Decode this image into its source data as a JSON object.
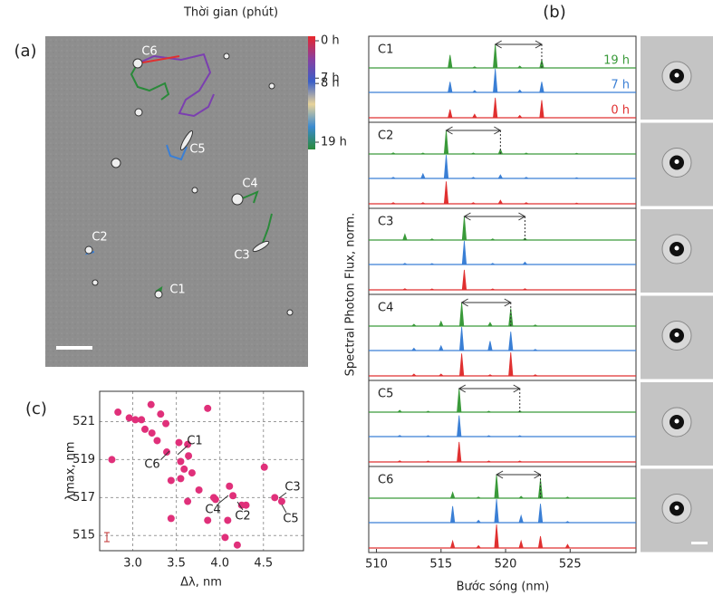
{
  "panel_labels": [
    "(a)",
    "(b)",
    "(c)"
  ],
  "micrograph": {
    "labels": [
      "C6",
      "C5",
      "C4",
      "C2",
      "C3",
      "C1"
    ]
  },
  "chart_data": [
    {
      "type": "colorbar",
      "title": "Thời gian (phút)",
      "lim": [
        0,
        19
      ],
      "ticks": [
        {
          "value": 0,
          "label": "0 h"
        },
        {
          "value": 7,
          "label": "7 h"
        },
        {
          "value": 8,
          "label": "8 h"
        },
        {
          "value": 19,
          "label": "19 h"
        }
      ],
      "colors": [
        "#e8262b",
        "#8a3fa0",
        "#3a5fc8",
        "#e8d39a",
        "#3b8ad0",
        "#2a8a3a"
      ]
    },
    {
      "type": "spectra",
      "title": "C1",
      "xlim": [
        509.4,
        530.1
      ],
      "ylim": [
        0,
        1
      ],
      "arrow": [
        519.2,
        522.8
      ],
      "x": [
        515.7,
        517.6,
        519.2,
        521.1,
        522.8
      ],
      "series": [
        {
          "name": "19 h",
          "color": "#3a9a3a",
          "values": [
            0.55,
            0.05,
            1,
            0.08,
            0.35
          ]
        },
        {
          "name": "7 h",
          "color": "#3a7fd5",
          "values": [
            0.45,
            0.08,
            1,
            0.1,
            0.45
          ]
        },
        {
          "name": "0 h",
          "color": "#e03030",
          "values": [
            0.35,
            0.15,
            0.85,
            0.1,
            0.75
          ]
        }
      ]
    },
    {
      "type": "spectra",
      "title": "C2",
      "xlim": [
        509.4,
        530.1
      ],
      "ylim": [
        0,
        1
      ],
      "arrow": [
        515.4,
        519.6
      ],
      "x": [
        511.3,
        513.6,
        515.4,
        517.5,
        519.6,
        521.6,
        525.5
      ],
      "series": [
        {
          "color": "#3a9a3a",
          "values": [
            0.05,
            0.04,
            1,
            0.04,
            0.2,
            0.04,
            0.03
          ]
        },
        {
          "color": "#3a7fd5",
          "values": [
            0.05,
            0.2,
            1,
            0.05,
            0.15,
            0.05,
            0.03
          ]
        },
        {
          "color": "#e03030",
          "values": [
            0.05,
            0.05,
            0.95,
            0.05,
            0.15,
            0.05,
            0.03
          ]
        }
      ]
    },
    {
      "type": "spectra",
      "title": "C3",
      "xlim": [
        509.4,
        530.1
      ],
      "ylim": [
        0,
        1
      ],
      "arrow": [
        516.8,
        521.5
      ],
      "x": [
        512.2,
        514.3,
        516.8,
        519.0,
        521.5
      ],
      "series": [
        {
          "color": "#3a9a3a",
          "values": [
            0.25,
            0.05,
            1,
            0.05,
            0.08
          ]
        },
        {
          "color": "#3a7fd5",
          "values": [
            0.05,
            0.04,
            1,
            0.05,
            0.1
          ]
        },
        {
          "color": "#e03030",
          "values": [
            0.05,
            0.04,
            0.85,
            0.04,
            0.05
          ]
        }
      ]
    },
    {
      "type": "spectra",
      "title": "C4",
      "xlim": [
        509.4,
        530.1
      ],
      "ylim": [
        0,
        1
      ],
      "arrow": [
        516.6,
        520.4
      ],
      "x": [
        512.9,
        515.0,
        516.6,
        518.8,
        520.4,
        522.3
      ],
      "series": [
        {
          "color": "#3a9a3a",
          "values": [
            0.08,
            0.2,
            1,
            0.15,
            0.75,
            0.05
          ]
        },
        {
          "color": "#3a7fd5",
          "values": [
            0.1,
            0.2,
            1,
            0.4,
            0.8,
            0.05
          ]
        },
        {
          "color": "#e03030",
          "values": [
            0.08,
            0.08,
            0.95,
            0.05,
            1,
            0.05
          ]
        }
      ]
    },
    {
      "type": "spectra",
      "title": "C5",
      "xlim": [
        509.4,
        530.1
      ],
      "ylim": [
        0,
        1
      ],
      "arrow": [
        516.4,
        521.1
      ],
      "x": [
        511.8,
        514.0,
        516.4,
        518.7,
        521.1
      ],
      "series": [
        {
          "color": "#3a9a3a",
          "values": [
            0.08,
            0.04,
            1,
            0.04,
            0.05
          ]
        },
        {
          "color": "#3a7fd5",
          "values": [
            0.05,
            0.04,
            0.9,
            0.04,
            0.04
          ]
        },
        {
          "color": "#e03030",
          "values": [
            0.05,
            0.04,
            0.85,
            0.04,
            0.04
          ]
        }
      ]
    },
    {
      "type": "spectra",
      "title": "C6",
      "xlim": [
        509.4,
        530.1
      ],
      "ylim": [
        0,
        1
      ],
      "arrow": [
        519.3,
        522.7
      ],
      "x": [
        515.9,
        517.9,
        519.3,
        521.2,
        522.7,
        524.8
      ],
      "series": [
        {
          "color": "#3a9a3a",
          "values": [
            0.25,
            0.05,
            1,
            0.08,
            0.8,
            0.05
          ]
        },
        {
          "color": "#3a7fd5",
          "values": [
            0.7,
            0.1,
            1,
            0.3,
            0.8,
            0.05
          ]
        },
        {
          "color": "#e03030",
          "values": [
            0.3,
            0.1,
            1,
            0.3,
            0.5,
            0.15
          ]
        }
      ],
      "xticks": [
        510,
        515,
        520,
        525
      ],
      "xlabel": "Bước sóng (nm)",
      "ylabel": "Spectral Photon Flux, norm."
    },
    {
      "type": "scatter",
      "color": "#e0307a",
      "xlim": [
        2.62,
        4.96
      ],
      "ylim": [
        514.2,
        522.6
      ],
      "xticks": [
        {
          "value": 3,
          "label": "3.0"
        },
        3.5,
        {
          "value": 4,
          "label": "4.0"
        },
        4.5
      ],
      "yticks": [
        515,
        517,
        519,
        521
      ],
      "grid": true,
      "xlabel": "Δλ, nm",
      "ylabel": "λmax, nm",
      "annotations": [
        "C1",
        "C6",
        "C4",
        "C2",
        "C3",
        "C5"
      ],
      "x": [
        2.83,
        2.96,
        3.03,
        3.1,
        3.14,
        3.22,
        3.21,
        3.32,
        3.38,
        3.28,
        2.76,
        3.53,
        3.63,
        3.55,
        3.64,
        3.39,
        3.59,
        3.68,
        3.44,
        3.76,
        3.93,
        3.63,
        3.44,
        3.86,
        4.11,
        3.95,
        4.15,
        4.25,
        4.3,
        4.09,
        4.06,
        4.2,
        4.51,
        4.63,
        4.71,
        3.86,
        3.55
      ],
      "values": [
        521.5,
        521.2,
        521.1,
        521.1,
        520.6,
        520.4,
        521.9,
        521.4,
        520.9,
        520.0,
        519.0,
        519.9,
        519.8,
        518.9,
        519.2,
        519.4,
        518.5,
        518.3,
        517.9,
        517.4,
        517.0,
        516.8,
        515.9,
        515.8,
        517.6,
        516.9,
        517.1,
        516.6,
        516.6,
        515.8,
        514.9,
        514.5,
        518.6,
        517.0,
        516.8,
        521.7,
        518.0
      ]
    }
  ]
}
